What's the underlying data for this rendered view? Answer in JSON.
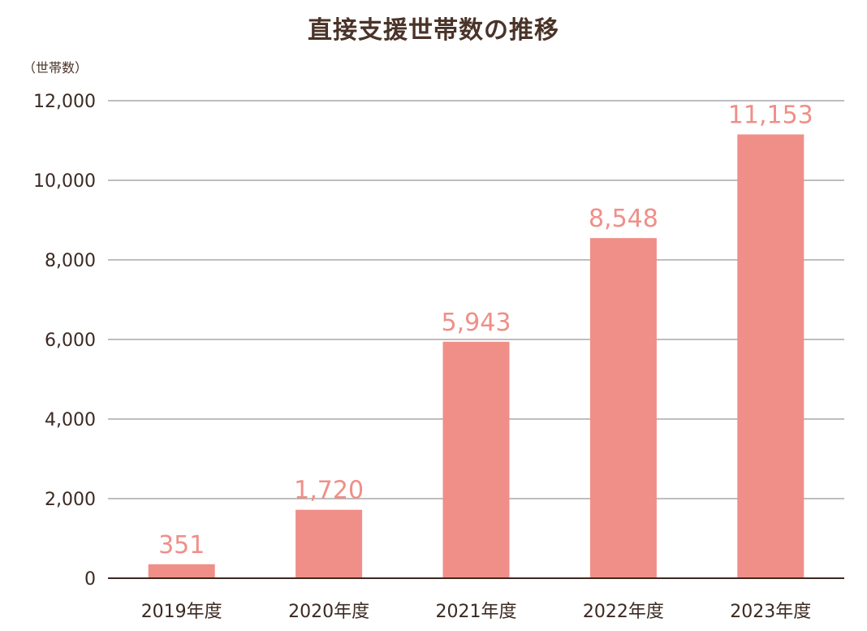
{
  "chart_data": {
    "type": "bar",
    "title": "直接支援世帯数の推移",
    "unit_label": "（世帯数）",
    "categories": [
      "2019年度",
      "2020年度",
      "2021年度",
      "2022年度",
      "2023年度"
    ],
    "values": [
      351,
      1720,
      5943,
      8548,
      11153
    ],
    "data_labels": [
      "351",
      "1,720",
      "5,943",
      "8,548",
      "11,153"
    ],
    "y_ticks": [
      "0",
      "2,000",
      "4,000",
      "6,000",
      "8,000",
      "10,000",
      "12,000"
    ],
    "ylim": [
      0,
      12000
    ],
    "grid": true,
    "bar_color": "#ef8f88",
    "label_color": "#ef8f88",
    "grid_color": "#a9a9a9",
    "text_color": "#4a3328"
  }
}
